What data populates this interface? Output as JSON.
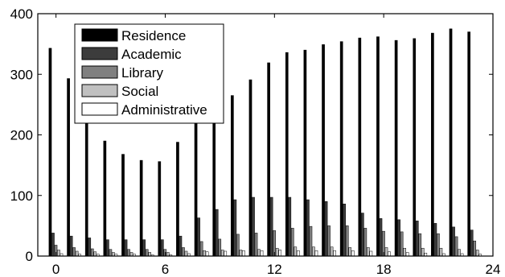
{
  "chart_data": {
    "type": "bar",
    "title": "",
    "xlabel": "",
    "ylabel": "",
    "x": [
      0,
      1,
      2,
      3,
      4,
      5,
      6,
      7,
      8,
      9,
      10,
      11,
      12,
      13,
      14,
      15,
      16,
      17,
      18,
      19,
      20,
      21,
      22,
      23
    ],
    "xlim": [
      -1,
      24
    ],
    "ylim": [
      0,
      400
    ],
    "xticks": [
      0,
      6,
      12,
      18,
      24
    ],
    "yticks": [
      0,
      100,
      200,
      300,
      400
    ],
    "grid": false,
    "legend_position": "top-left",
    "series": [
      {
        "name": "Residence",
        "color": "#000000",
        "values": [
          343,
          293,
          232,
          190,
          168,
          158,
          156,
          188,
          228,
          242,
          265,
          291,
          319,
          336,
          340,
          349,
          354,
          360,
          362,
          356,
          359,
          368,
          375,
          370
        ]
      },
      {
        "name": "Academic",
        "color": "#3c3c3c",
        "values": [
          38,
          33,
          30,
          27,
          27,
          27,
          27,
          33,
          63,
          77,
          93,
          97,
          97,
          97,
          93,
          90,
          86,
          71,
          62,
          60,
          58,
          54,
          48,
          43
        ]
      },
      {
        "name": "Library",
        "color": "#808080",
        "values": [
          18,
          14,
          12,
          11,
          11,
          11,
          11,
          14,
          24,
          28,
          36,
          38,
          42,
          46,
          49,
          50,
          50,
          46,
          41,
          40,
          37,
          37,
          32,
          25
        ]
      },
      {
        "name": "Social",
        "color": "#c0c0c0",
        "values": [
          10,
          8,
          7,
          6,
          6,
          6,
          6,
          8,
          9,
          10,
          10,
          11,
          13,
          15,
          15,
          15,
          14,
          14,
          14,
          13,
          13,
          13,
          11,
          10
        ]
      },
      {
        "name": "Administrative",
        "color": "#ffffff",
        "values": [
          4,
          3,
          3,
          3,
          3,
          2,
          2,
          4,
          7,
          8,
          9,
          9,
          10,
          9,
          9,
          9,
          9,
          8,
          7,
          6,
          5,
          4,
          4,
          3
        ]
      }
    ]
  }
}
